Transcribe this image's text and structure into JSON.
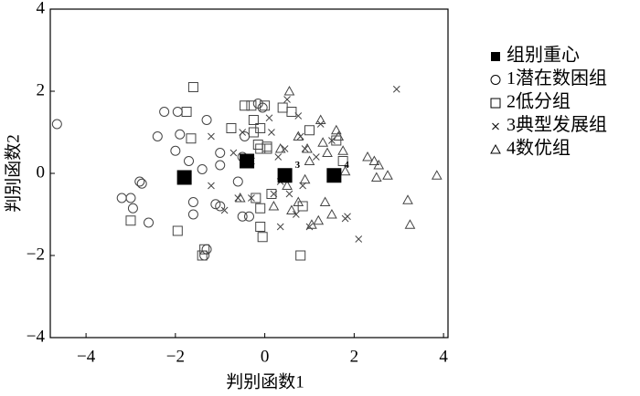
{
  "chart_data": {
    "type": "scatter",
    "x_label": "判别函数1",
    "y_label": "判别函数2",
    "xlim": [
      -4.8,
      4.1
    ],
    "ylim": [
      -4,
      4
    ],
    "xticks": [
      {
        "value": -4,
        "label": "−4"
      },
      {
        "value": -2,
        "label": "−2"
      },
      0,
      2,
      4
    ],
    "yticks": [
      {
        "value": -4,
        "label": "−4"
      },
      {
        "value": -2,
        "label": "−2"
      },
      0,
      2,
      4
    ],
    "grid": false,
    "series": [
      {
        "name": "组别重心",
        "marker": "filled-square",
        "color": "#000000",
        "x": [
          -1.8,
          -0.4,
          0.45,
          1.55
        ],
        "y": [
          -0.1,
          0.3,
          -0.05,
          -0.05
        ]
      },
      {
        "name": "1潜在数困组",
        "marker": "circle",
        "color": "#444444",
        "x": [
          -4.65,
          -3.2,
          -3.0,
          -2.95,
          -2.8,
          -2.75,
          -2.6,
          -2.4,
          -2.25,
          -2.0,
          -1.95,
          -1.9,
          -1.7,
          -1.6,
          -1.6,
          -1.4,
          -1.35,
          -1.3,
          -1.1,
          -1.0,
          -1.0,
          -1.0,
          -0.6,
          -0.5,
          -0.35,
          -0.15,
          -0.05,
          -0.45,
          -0.5,
          -1.3
        ],
        "y": [
          1.2,
          -0.6,
          -0.6,
          -0.85,
          -0.2,
          -0.25,
          -1.2,
          0.9,
          1.5,
          0.55,
          1.5,
          0.95,
          0.3,
          -0.7,
          -1.0,
          0.1,
          -2.0,
          -1.85,
          -0.75,
          0.5,
          0.2,
          -0.8,
          -0.2,
          -1.05,
          -1.05,
          1.7,
          1.6,
          0.9,
          0.4,
          1.3
        ]
      },
      {
        "name": "2低分组",
        "marker": "square",
        "color": "#444444",
        "x": [
          -3.0,
          -1.95,
          -1.75,
          -1.6,
          -1.65,
          -1.4,
          -1.35,
          -0.75,
          -0.45,
          -0.3,
          -0.25,
          -0.25,
          -0.15,
          -0.1,
          -0.1,
          -0.2,
          -0.1,
          -0.1,
          0.0,
          0.05,
          0.15,
          0.6,
          0.85,
          0.8,
          1.0,
          1.6,
          1.75,
          -0.05,
          0.05,
          0.4
        ],
        "y": [
          -1.15,
          -1.4,
          1.5,
          2.1,
          0.85,
          -2.0,
          -1.85,
          1.1,
          1.65,
          1.65,
          1.3,
          1.0,
          0.7,
          1.1,
          0.6,
          -0.6,
          -0.85,
          -1.3,
          1.65,
          0.6,
          -0.5,
          1.5,
          -0.8,
          -2.0,
          1.05,
          0.8,
          0.3,
          -1.55,
          0.65,
          1.6
        ]
      },
      {
        "name": "3典型发展组",
        "marker": "cross",
        "color": "#444444",
        "x": [
          -1.2,
          -1.2,
          -0.9,
          -0.7,
          -0.6,
          -0.5,
          -0.3,
          -0.3,
          0.1,
          0.15,
          0.2,
          0.3,
          0.35,
          0.45,
          0.55,
          0.7,
          0.75,
          0.8,
          0.85,
          0.9,
          1.0,
          1.15,
          1.25,
          1.5,
          1.8,
          1.85,
          2.1,
          2.95,
          0.35,
          0.5
        ],
        "y": [
          0.9,
          -0.3,
          -0.9,
          0.5,
          -0.6,
          1.0,
          0.3,
          -0.6,
          1.35,
          1.0,
          -0.5,
          0.4,
          -1.3,
          0.6,
          -0.5,
          -1.0,
          1.4,
          0.9,
          -0.3,
          0.6,
          -1.3,
          0.4,
          1.2,
          0.8,
          -1.1,
          -1.05,
          -1.6,
          2.05,
          -0.2,
          1.8
        ]
      },
      {
        "name": "4数优组",
        "marker": "triangle",
        "color": "#444444",
        "x": [
          -0.55,
          0.55,
          0.75,
          0.5,
          0.6,
          0.75,
          0.95,
          1.0,
          1.05,
          1.2,
          1.25,
          1.3,
          1.35,
          1.5,
          1.6,
          1.65,
          1.75,
          1.8,
          2.3,
          2.45,
          2.5,
          2.55,
          2.75,
          3.2,
          3.25,
          3.85,
          0.35,
          0.2,
          1.4,
          0.9
        ],
        "y": [
          -0.6,
          2.0,
          0.9,
          -0.3,
          -0.9,
          -0.7,
          0.6,
          0.3,
          -1.25,
          -1.15,
          1.3,
          0.75,
          -0.7,
          -1.0,
          1.05,
          0.9,
          0.55,
          0.05,
          0.4,
          0.3,
          -0.1,
          0.2,
          -0.05,
          -0.65,
          -1.25,
          -0.05,
          0.6,
          -0.8,
          0.5,
          -0.15
        ]
      }
    ],
    "annotations": [
      {
        "text": "3",
        "x": 0.45,
        "y": -0.05
      },
      {
        "text": "4",
        "x": 1.55,
        "y": -0.05
      }
    ]
  }
}
